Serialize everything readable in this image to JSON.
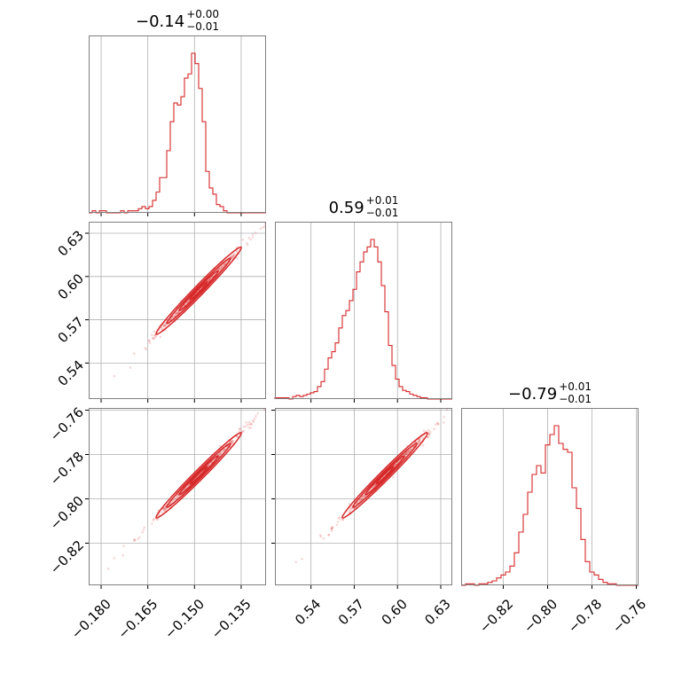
{
  "chart_data": {
    "type": "corner",
    "color": "#d62728",
    "grid": true,
    "titles": [
      {
        "main": "−0.14",
        "sup": "+0.00",
        "sub": "−0.01"
      },
      {
        "main": "0.59",
        "sup": "+0.01",
        "sub": "−0.01"
      },
      {
        "main": "−0.79",
        "sup": "+0.01",
        "sub": "−0.01"
      }
    ],
    "params": [
      {
        "range": [
          -0.184,
          -0.127
        ],
        "ticks": [
          -0.18,
          -0.165,
          -0.15,
          -0.135
        ],
        "tick_labels": [
          "−0.180",
          "−0.165",
          "−0.150",
          "−0.135"
        ]
      },
      {
        "range": [
          0.515,
          0.638
        ],
        "ticks": [
          0.54,
          0.57,
          0.6,
          0.63
        ],
        "tick_labels": [
          "0.54",
          "0.57",
          "0.60",
          "0.63"
        ]
      },
      {
        "range": [
          -0.839,
          -0.759
        ],
        "ticks": [
          -0.82,
          -0.8,
          -0.78,
          -0.76
        ],
        "tick_labels": [
          "−0.82",
          "−0.80",
          "−0.78",
          "−0.76"
        ]
      }
    ],
    "histograms": [
      {
        "bins": 50,
        "counts": [
          0,
          1,
          0,
          1,
          1,
          0,
          0,
          0,
          0,
          1,
          0,
          1,
          1,
          1,
          2,
          3,
          2,
          3,
          6,
          10,
          17,
          17,
          30,
          44,
          53,
          52,
          56,
          65,
          67,
          77,
          72,
          60,
          44,
          20,
          12,
          9,
          4,
          3,
          1,
          0,
          0,
          0,
          0,
          0,
          0,
          0,
          0,
          0,
          0,
          0
        ]
      },
      {
        "bins": 50,
        "counts": [
          1,
          1,
          1,
          1,
          0,
          2,
          3,
          2,
          3,
          4,
          5,
          6,
          10,
          14,
          24,
          33,
          38,
          45,
          57,
          67,
          71,
          79,
          88,
          102,
          110,
          118,
          122,
          128,
          122,
          110,
          91,
          70,
          43,
          27,
          16,
          10,
          7,
          6,
          4,
          3,
          2,
          1,
          1,
          0,
          0,
          0,
          0,
          0,
          0,
          0
        ]
      },
      {
        "bins": 40,
        "counts": [
          0,
          1,
          1,
          0,
          1,
          1,
          2,
          3,
          5,
          7,
          9,
          13,
          22,
          36,
          48,
          63,
          75,
          81,
          76,
          95,
          102,
          108,
          96,
          92,
          90,
          66,
          52,
          31,
          16,
          9,
          7,
          4,
          2,
          1,
          1,
          0,
          0,
          0,
          0,
          0
        ]
      }
    ],
    "joint_2d": [
      {
        "x_param": 0,
        "y_param": 1,
        "label": "param0-vs-param1",
        "trend": {
          "start": [
            -0.184,
            0.512
          ],
          "end": [
            -0.127,
            0.638
          ]
        }
      },
      {
        "x_param": 0,
        "y_param": 2,
        "label": "param0-vs-param2",
        "trend": {
          "start": [
            -0.184,
            -0.839
          ],
          "end": [
            -0.127,
            -0.759
          ]
        }
      },
      {
        "x_param": 1,
        "y_param": 2,
        "label": "param1-vs-param2",
        "trend": {
          "start": [
            0.515,
            -0.839
          ],
          "end": [
            0.638,
            -0.759
          ]
        }
      }
    ]
  }
}
